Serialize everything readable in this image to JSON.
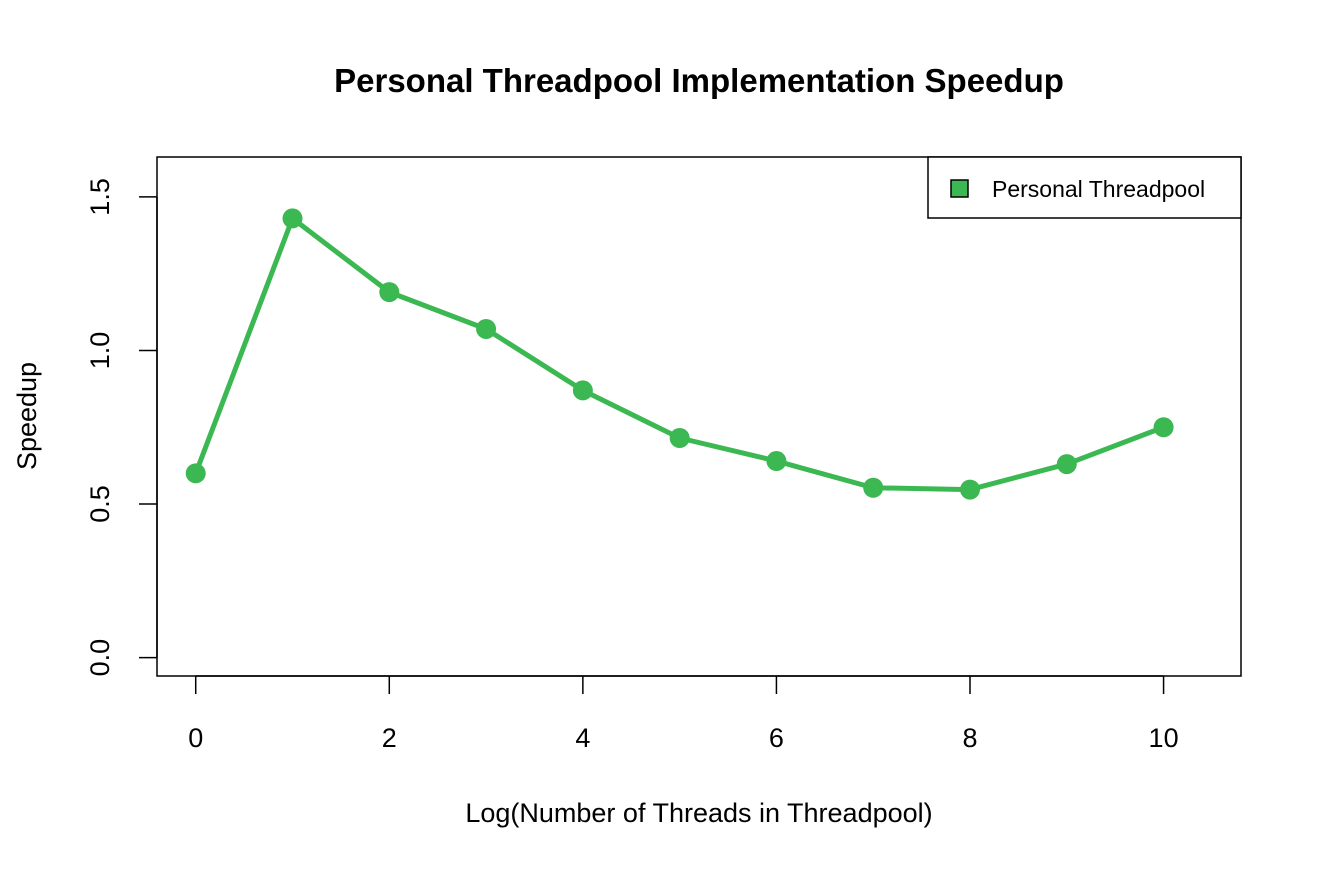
{
  "chart_data": {
    "type": "line",
    "title": "Personal Threadpool Implementation Speedup",
    "xlabel": "Log(Number of Threads in Threadpool)",
    "ylabel": "Speedup",
    "xlim": [
      -0.4,
      10.8
    ],
    "ylim": [
      -0.06,
      1.63
    ],
    "x_ticks": [
      0,
      2,
      4,
      6,
      8,
      10
    ],
    "y_ticks": [
      0.0,
      0.5,
      1.0,
      1.5
    ],
    "x_tick_labels": [
      "0",
      "2",
      "4",
      "6",
      "8",
      "10"
    ],
    "y_tick_labels": [
      "0.0",
      "0.5",
      "1.0",
      "1.5"
    ],
    "series": [
      {
        "name": "Personal Threadpool",
        "color": "#3cb853",
        "x": [
          0,
          1,
          2,
          3,
          4,
          5,
          6,
          7,
          8,
          9,
          10
        ],
        "y": [
          0.6,
          1.43,
          1.19,
          1.07,
          0.87,
          0.715,
          0.64,
          0.553,
          0.547,
          0.63,
          0.75
        ]
      }
    ],
    "legend": {
      "position": "top-right",
      "entries": [
        "Personal Threadpool"
      ]
    },
    "grid": false
  }
}
